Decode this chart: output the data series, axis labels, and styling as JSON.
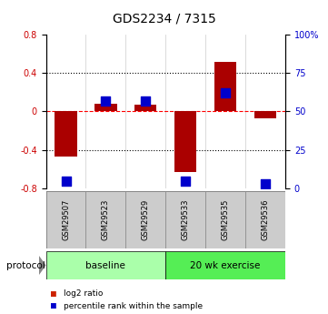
{
  "title": "GDS2234 / 7315",
  "samples": [
    "GSM29507",
    "GSM29523",
    "GSM29529",
    "GSM29533",
    "GSM29535",
    "GSM29536"
  ],
  "log2_ratio": [
    -0.47,
    0.08,
    0.07,
    -0.63,
    0.52,
    -0.07
  ],
  "percentile_rank": [
    5,
    57,
    57,
    5,
    62,
    3
  ],
  "bar_color": "#aa0000",
  "dot_color": "#0000cc",
  "ylim": [
    -0.8,
    0.8
  ],
  "percentile_ylim": [
    0,
    100
  ],
  "yticks_left": [
    -0.8,
    -0.4,
    0.0,
    0.4,
    0.8
  ],
  "yticks_right": [
    0,
    25,
    50,
    75,
    100
  ],
  "ytick_labels_right": [
    "0",
    "25",
    "50",
    "75",
    "100%"
  ],
  "hline_y": 0.0,
  "dotted_hlines": [
    -0.4,
    0.4
  ],
  "groups": [
    {
      "label": "baseline",
      "start": 0,
      "end": 3,
      "color": "#aaffaa"
    },
    {
      "label": "20 wk exercise",
      "start": 3,
      "end": 6,
      "color": "#55ee55"
    }
  ],
  "protocol_label": "protocol",
  "legend_items": [
    {
      "label": "log2 ratio",
      "color": "#cc2200"
    },
    {
      "label": "percentile rank within the sample",
      "color": "#0000cc"
    }
  ],
  "bar_width": 0.55,
  "dot_size": 50,
  "background_color": "#ffffff",
  "plot_bg": "#ffffff",
  "tick_label_color_left": "#cc0000",
  "tick_label_color_right": "#0000cc",
  "gray_box_color": "#cccccc",
  "gray_box_edge": "#888888"
}
